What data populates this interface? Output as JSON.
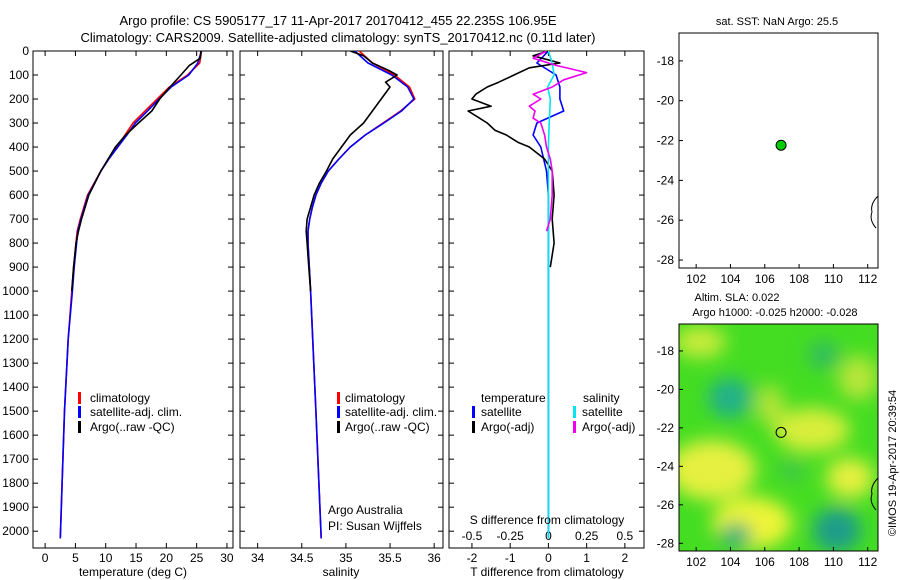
{
  "header": {
    "title_line1": "Argo profile: CS 5905177_17 11-Apr-2017 20170412_455 22.235S 106.95E",
    "title_line2": "Climatology: CARS2009. Satellite-adjusted climatology: synTS_20170412.nc (0.11d later)"
  },
  "credit": "©IMOS 19-Apr-2017 20:39:54",
  "colors": {
    "climatology": "#ff0000",
    "satellite": "#0000ff",
    "argo": "#000000",
    "salinity_satellite": "#00e5ee",
    "salinity_argo": "#ee00ee",
    "station_marker": "#00cc00"
  },
  "chart_data": [
    {
      "type": "line",
      "panel": "temperature",
      "xlabel": "temperature (deg C)",
      "ylabel": "",
      "xlim": [
        -2,
        31
      ],
      "ylim": [
        2070,
        0
      ],
      "xticks": [
        "0",
        "5",
        "10",
        "15",
        "20",
        "25",
        "30"
      ],
      "yticks": [
        "0",
        "100",
        "200",
        "300",
        "400",
        "500",
        "600",
        "700",
        "800",
        "900",
        "1000",
        "1100",
        "1200",
        "1300",
        "1400",
        "1500",
        "1600",
        "1700",
        "1800",
        "1900",
        "2000"
      ],
      "legend": [
        "climatology",
        "satellite-adj. clim.",
        "Argo(..raw -QC)"
      ],
      "series": [
        {
          "name": "climatology",
          "color": "#ff0000",
          "depth": [
            0,
            50,
            100,
            150,
            200,
            250,
            300,
            350,
            400,
            450,
            500,
            600,
            700,
            750,
            800,
            900,
            1000,
            1200,
            1500,
            1800,
            2030
          ],
          "values": [
            25.8,
            25.5,
            23.5,
            20.5,
            18.5,
            16.5,
            14.5,
            13.2,
            11.8,
            10.4,
            9.2,
            7.0,
            5.8,
            5.3,
            5.1,
            4.7,
            4.4,
            3.8,
            3.2,
            2.8,
            2.5
          ]
        },
        {
          "name": "satellite-adj. clim.",
          "color": "#0000ff",
          "depth": [
            0,
            50,
            100,
            150,
            200,
            250,
            300,
            350,
            400,
            450,
            500,
            600,
            700,
            750,
            800,
            900,
            1000,
            1200,
            1500,
            1800,
            2030
          ],
          "values": [
            25.8,
            25.2,
            23.7,
            20.8,
            18.8,
            16.9,
            14.9,
            13.5,
            12.0,
            10.5,
            9.2,
            7.1,
            5.9,
            5.4,
            5.2,
            4.8,
            4.5,
            3.8,
            3.2,
            2.8,
            2.5
          ]
        },
        {
          "name": "Argo(..raw -QC)",
          "color": "#000000",
          "depth": [
            0,
            30,
            60,
            100,
            150,
            200,
            250,
            300,
            350,
            400,
            450,
            500,
            600,
            700,
            750,
            800,
            900,
            1000
          ],
          "values": [
            25.7,
            25.6,
            23.8,
            22.4,
            20.6,
            18.9,
            17.6,
            15.4,
            13.3,
            11.6,
            10.4,
            9.2,
            7.2,
            6.0,
            5.5,
            5.1,
            4.7,
            4.4
          ]
        }
      ]
    },
    {
      "type": "line",
      "panel": "salinity",
      "xlabel": "salinity",
      "ylabel": "",
      "xlim": [
        33.8,
        36.1
      ],
      "ylim": [
        2070,
        0
      ],
      "xticks": [
        "34",
        "34.5",
        "35",
        "35.5",
        "36"
      ],
      "legend": [
        "climatology",
        "satellite-adj. clim.",
        "Argo(..raw -QC)"
      ],
      "annotation": [
        "Argo Australia",
        "PI: Susan Wijffels"
      ],
      "series": [
        {
          "name": "climatology",
          "color": "#ff0000",
          "depth": [
            0,
            50,
            100,
            150,
            200,
            250,
            300,
            350,
            400,
            450,
            500,
            550,
            600,
            650,
            700,
            750,
            800,
            1000,
            1500,
            2030
          ],
          "values": [
            35.15,
            35.3,
            35.55,
            35.72,
            35.78,
            35.62,
            35.42,
            35.22,
            35.05,
            34.92,
            34.8,
            34.72,
            34.66,
            34.62,
            34.59,
            34.57,
            34.57,
            34.6,
            34.66,
            34.72
          ]
        },
        {
          "name": "satellite-adj. clim.",
          "color": "#0000ff",
          "depth": [
            0,
            50,
            100,
            150,
            200,
            250,
            300,
            350,
            400,
            450,
            500,
            550,
            600,
            650,
            700,
            750,
            800,
            1000,
            1500,
            2030
          ],
          "values": [
            35.1,
            35.25,
            35.52,
            35.7,
            35.77,
            35.63,
            35.43,
            35.22,
            35.05,
            34.92,
            34.8,
            34.72,
            34.66,
            34.62,
            34.59,
            34.57,
            34.57,
            34.6,
            34.66,
            34.72
          ]
        },
        {
          "name": "Argo(..raw -QC)",
          "color": "#000000",
          "depth": [
            0,
            20,
            50,
            80,
            100,
            130,
            150,
            200,
            250,
            300,
            350,
            400,
            450,
            500,
            550,
            600,
            650,
            700,
            750,
            800,
            900,
            1000
          ],
          "values": [
            35.05,
            35.2,
            35.3,
            35.48,
            35.58,
            35.45,
            35.5,
            35.4,
            35.3,
            35.2,
            35.05,
            34.95,
            34.85,
            34.78,
            34.7,
            34.64,
            34.6,
            34.56,
            34.55,
            34.56,
            34.58,
            34.6
          ]
        }
      ]
    },
    {
      "type": "line",
      "panel": "difference",
      "xlabel": "T difference from climatology",
      "xlabel_top": "S difference from climatology",
      "ylabel": "",
      "xlim": [
        -2.6,
        2.5
      ],
      "ylim": [
        2070,
        0
      ],
      "xticks": [
        "-2",
        "-1",
        "0",
        "1",
        "2"
      ],
      "xticks_salinity": [
        "-0.5",
        "-0.25",
        "0",
        "0.25",
        "0.5"
      ],
      "legend_groups": [
        "temperature",
        "salinity"
      ],
      "legend": [
        "satellite",
        "Argo(-adj)",
        "satellite",
        "Argo(-adj)"
      ],
      "series": [
        {
          "name": "satellite",
          "color": "#0000ff",
          "depth": [
            0,
            50,
            100,
            150,
            200,
            250,
            300,
            350,
            400,
            500,
            600,
            800,
            1000,
            1500,
            2030
          ],
          "values": [
            0.0,
            -0.3,
            0.2,
            0.3,
            0.3,
            0.4,
            -0.3,
            -0.4,
            -0.2,
            -0.05,
            0.0,
            0.0,
            0.0,
            0.0,
            0.0
          ]
        },
        {
          "name": "Argo(-adj)",
          "color": "#000000",
          "depth": [
            0,
            20,
            50,
            70,
            100,
            130,
            150,
            180,
            200,
            230,
            250,
            280,
            300,
            330,
            350,
            380,
            400,
            450,
            500,
            600,
            700,
            800,
            900
          ],
          "values": [
            0.0,
            -0.4,
            0.3,
            -0.5,
            -0.9,
            -1.3,
            -1.6,
            -1.9,
            -2.0,
            -1.5,
            -2.1,
            -1.8,
            -1.6,
            -1.4,
            -1.1,
            -0.8,
            -0.5,
            -0.1,
            0.1,
            0.15,
            0.1,
            0.15,
            0.05
          ]
        },
        {
          "name": "satellite",
          "color": "#00e5ee",
          "depth": [
            0,
            50,
            100,
            150,
            200,
            300,
            400,
            500,
            800,
            1200,
            1600,
            2030
          ],
          "values": [
            0.0,
            0.1,
            0.15,
            -0.02,
            0.05,
            0.02,
            0.0,
            0.0,
            0.0,
            0.0,
            0.0,
            0.0
          ]
        },
        {
          "name": "Argo(-adj)",
          "color": "#ee00ee",
          "depth": [
            0,
            30,
            60,
            90,
            120,
            150,
            180,
            200,
            230,
            250,
            280,
            300,
            350,
            400,
            450,
            500,
            600,
            700,
            750
          ],
          "values": [
            -0.05,
            -0.4,
            0.2,
            1.0,
            0.4,
            0.1,
            -0.4,
            -0.2,
            -0.5,
            -0.35,
            -0.4,
            -0.2,
            -0.1,
            -0.05,
            0.05,
            0.1,
            0.1,
            0.05,
            -0.05
          ]
        }
      ]
    },
    {
      "type": "scatter",
      "panel": "sst-map",
      "title": "sat. SST: NaN Argo: 25.5",
      "xlim": [
        101,
        112.6
      ],
      "ylim": [
        -28.4,
        -16.6
      ],
      "xticks": [
        "102",
        "104",
        "106",
        "108",
        "110",
        "112"
      ],
      "yticks": [
        "-18",
        "-20",
        "-22",
        "-24",
        "-26",
        "-28"
      ],
      "points": [
        {
          "x": 106.95,
          "y": -22.235
        }
      ]
    },
    {
      "type": "heatmap",
      "panel": "sla-map",
      "title_line1": "Altim. SLA: 0.022",
      "title_line2": "Argo h1000: -0.025 h2000: -0.028",
      "xlim": [
        101,
        112.6
      ],
      "ylim": [
        -28.4,
        -16.6
      ],
      "xticks": [
        "102",
        "104",
        "106",
        "108",
        "110",
        "112"
      ],
      "yticks": [
        "-18",
        "-20",
        "-22",
        "-24",
        "-26",
        "-28"
      ],
      "points": [
        {
          "x": 106.95,
          "y": -22.235
        }
      ]
    }
  ]
}
